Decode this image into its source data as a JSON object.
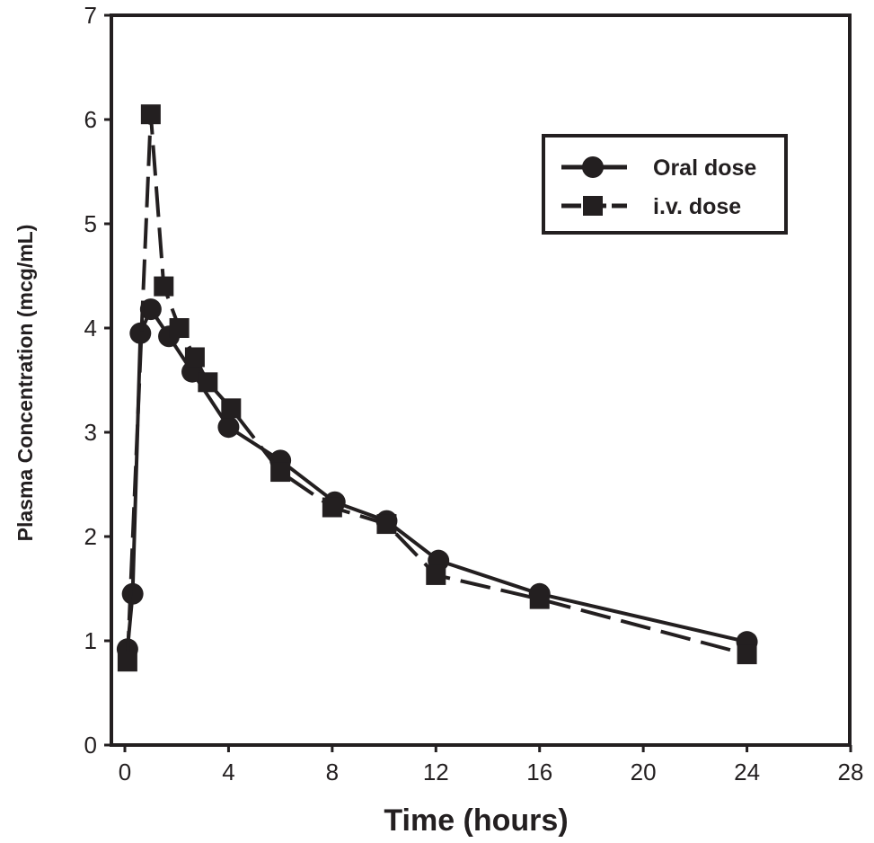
{
  "chart_data": {
    "type": "line",
    "title": "",
    "xlabel": "Time (hours)",
    "ylabel": "Plasma Concentration (mcg/mL)",
    "xlim": [
      0,
      28
    ],
    "ylim": [
      0,
      7
    ],
    "xticks": [
      "0",
      "4",
      "8",
      "12",
      "16",
      "20",
      "24",
      "28"
    ],
    "yticks": [
      "0",
      "1",
      "2",
      "3",
      "4",
      "5",
      "6",
      "7"
    ],
    "grid": false,
    "legend_position": "top-right",
    "series": [
      {
        "name": "Oral dose",
        "marker": "circle",
        "line_style": "solid",
        "x": [
          0.1,
          0.3,
          0.6,
          1.0,
          1.7,
          2.6,
          4.0,
          6.0,
          8.1,
          10.1,
          12.1,
          16.0,
          24.0
        ],
        "y": [
          0.92,
          1.45,
          3.95,
          4.18,
          3.92,
          3.58,
          3.05,
          2.73,
          2.33,
          2.15,
          1.77,
          1.45,
          0.99
        ]
      },
      {
        "name": "i.v. dose",
        "marker": "square",
        "line_style": "dashed",
        "x": [
          0.1,
          1.0,
          1.5,
          2.1,
          2.7,
          3.2,
          4.1,
          6.0,
          8.0,
          10.1,
          12.0,
          16.0,
          24.0
        ],
        "y": [
          0.8,
          6.05,
          4.4,
          4.0,
          3.72,
          3.48,
          3.23,
          2.62,
          2.28,
          2.12,
          1.63,
          1.4,
          0.87
        ]
      }
    ],
    "colors": {
      "ink": "#231f20",
      "background": "#ffffff"
    }
  }
}
